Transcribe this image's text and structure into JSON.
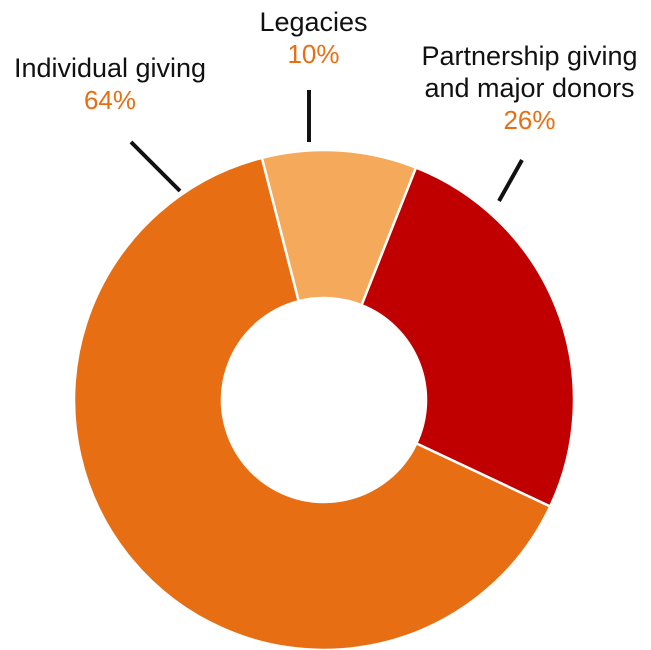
{
  "chart_data": {
    "type": "pie",
    "variant": "donut",
    "title": "",
    "slices": [
      {
        "label": "Legacies",
        "value": 10,
        "display": "10%",
        "color": "#F5A95B"
      },
      {
        "label": "Partnership giving and major donors",
        "value": 26,
        "display": "26%",
        "color": "#C00000"
      },
      {
        "label": "Individual giving",
        "value": 64,
        "display": "64%",
        "color": "#E86E14"
      }
    ],
    "label_color": "#E86E14",
    "leader_color": "#111111"
  }
}
